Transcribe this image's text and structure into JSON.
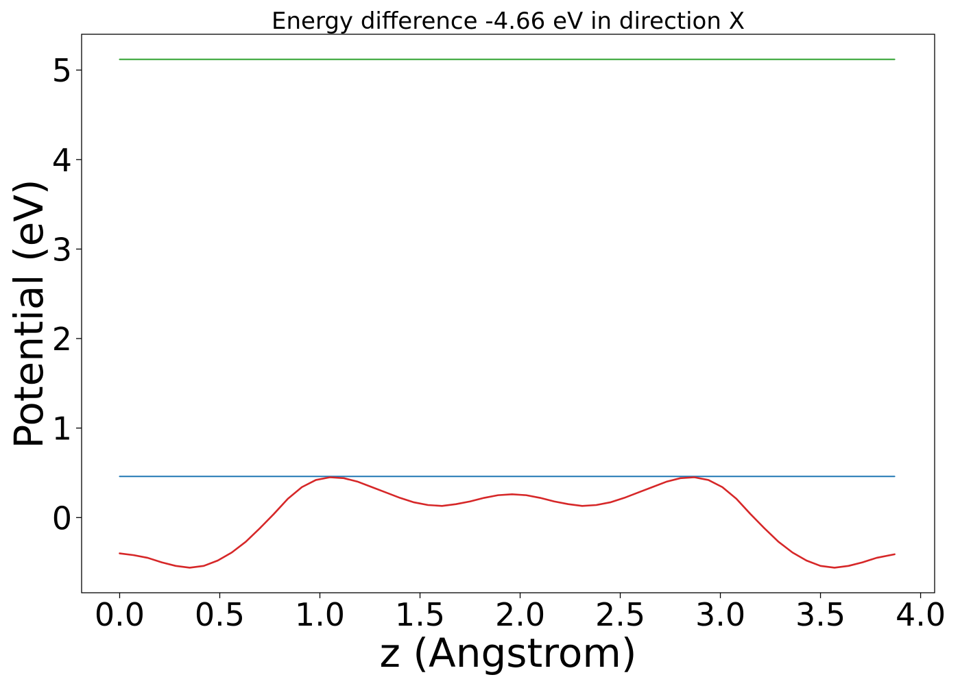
{
  "chart_data": {
    "type": "line",
    "title": "Energy difference -4.66 eV in direction X",
    "xlabel": "z (Angstrom)",
    "ylabel": "Potential (eV)",
    "xlim": [
      -0.19,
      4.07
    ],
    "ylim": [
      -0.84,
      5.4
    ],
    "grid": false,
    "legend": "none",
    "xticks": [
      {
        "value": 0.0,
        "label": "0.0"
      },
      {
        "value": 0.5,
        "label": "0.5"
      },
      {
        "value": 1.0,
        "label": "1.0"
      },
      {
        "value": 1.5,
        "label": "1.5"
      },
      {
        "value": 2.0,
        "label": "2.0"
      },
      {
        "value": 2.5,
        "label": "2.5"
      },
      {
        "value": 3.0,
        "label": "3.0"
      },
      {
        "value": 3.5,
        "label": "3.5"
      },
      {
        "value": 4.0,
        "label": "4.0"
      }
    ],
    "yticks": [
      {
        "value": 0,
        "label": "0"
      },
      {
        "value": 1,
        "label": "1"
      },
      {
        "value": 2,
        "label": "2"
      },
      {
        "value": 3,
        "label": "3"
      },
      {
        "value": 4,
        "label": "4"
      },
      {
        "value": 5,
        "label": "5"
      }
    ],
    "series": [
      {
        "color": "#2ca02c",
        "style": "hline",
        "x": [
          0.0,
          3.87
        ],
        "y": [
          5.12,
          5.12
        ]
      },
      {
        "color": "#1f77b4",
        "style": "hline",
        "x": [
          0.0,
          3.87
        ],
        "y": [
          0.46,
          0.46
        ]
      },
      {
        "color": "#d62728",
        "style": "curve",
        "x": [
          0.0,
          0.07,
          0.14,
          0.21,
          0.28,
          0.35,
          0.42,
          0.49,
          0.56,
          0.63,
          0.7,
          0.77,
          0.84,
          0.91,
          0.98,
          1.05,
          1.12,
          1.19,
          1.26,
          1.33,
          1.4,
          1.47,
          1.54,
          1.61,
          1.68,
          1.75,
          1.82,
          1.89,
          1.96,
          2.03,
          2.1,
          2.17,
          2.24,
          2.31,
          2.38,
          2.45,
          2.52,
          2.59,
          2.66,
          2.73,
          2.8,
          2.87,
          2.94,
          3.01,
          3.08,
          3.15,
          3.22,
          3.29,
          3.36,
          3.43,
          3.5,
          3.57,
          3.64,
          3.71,
          3.78,
          3.87
        ],
        "y": [
          -0.4,
          -0.42,
          -0.45,
          -0.5,
          -0.54,
          -0.56,
          -0.54,
          -0.48,
          -0.39,
          -0.27,
          -0.12,
          0.04,
          0.21,
          0.34,
          0.42,
          0.45,
          0.44,
          0.4,
          0.34,
          0.28,
          0.22,
          0.17,
          0.14,
          0.13,
          0.15,
          0.18,
          0.22,
          0.25,
          0.26,
          0.25,
          0.22,
          0.18,
          0.15,
          0.13,
          0.14,
          0.17,
          0.22,
          0.28,
          0.34,
          0.4,
          0.44,
          0.45,
          0.42,
          0.34,
          0.21,
          0.04,
          -0.12,
          -0.27,
          -0.39,
          -0.48,
          -0.54,
          -0.56,
          -0.54,
          -0.5,
          -0.45,
          -0.41
        ]
      }
    ]
  }
}
